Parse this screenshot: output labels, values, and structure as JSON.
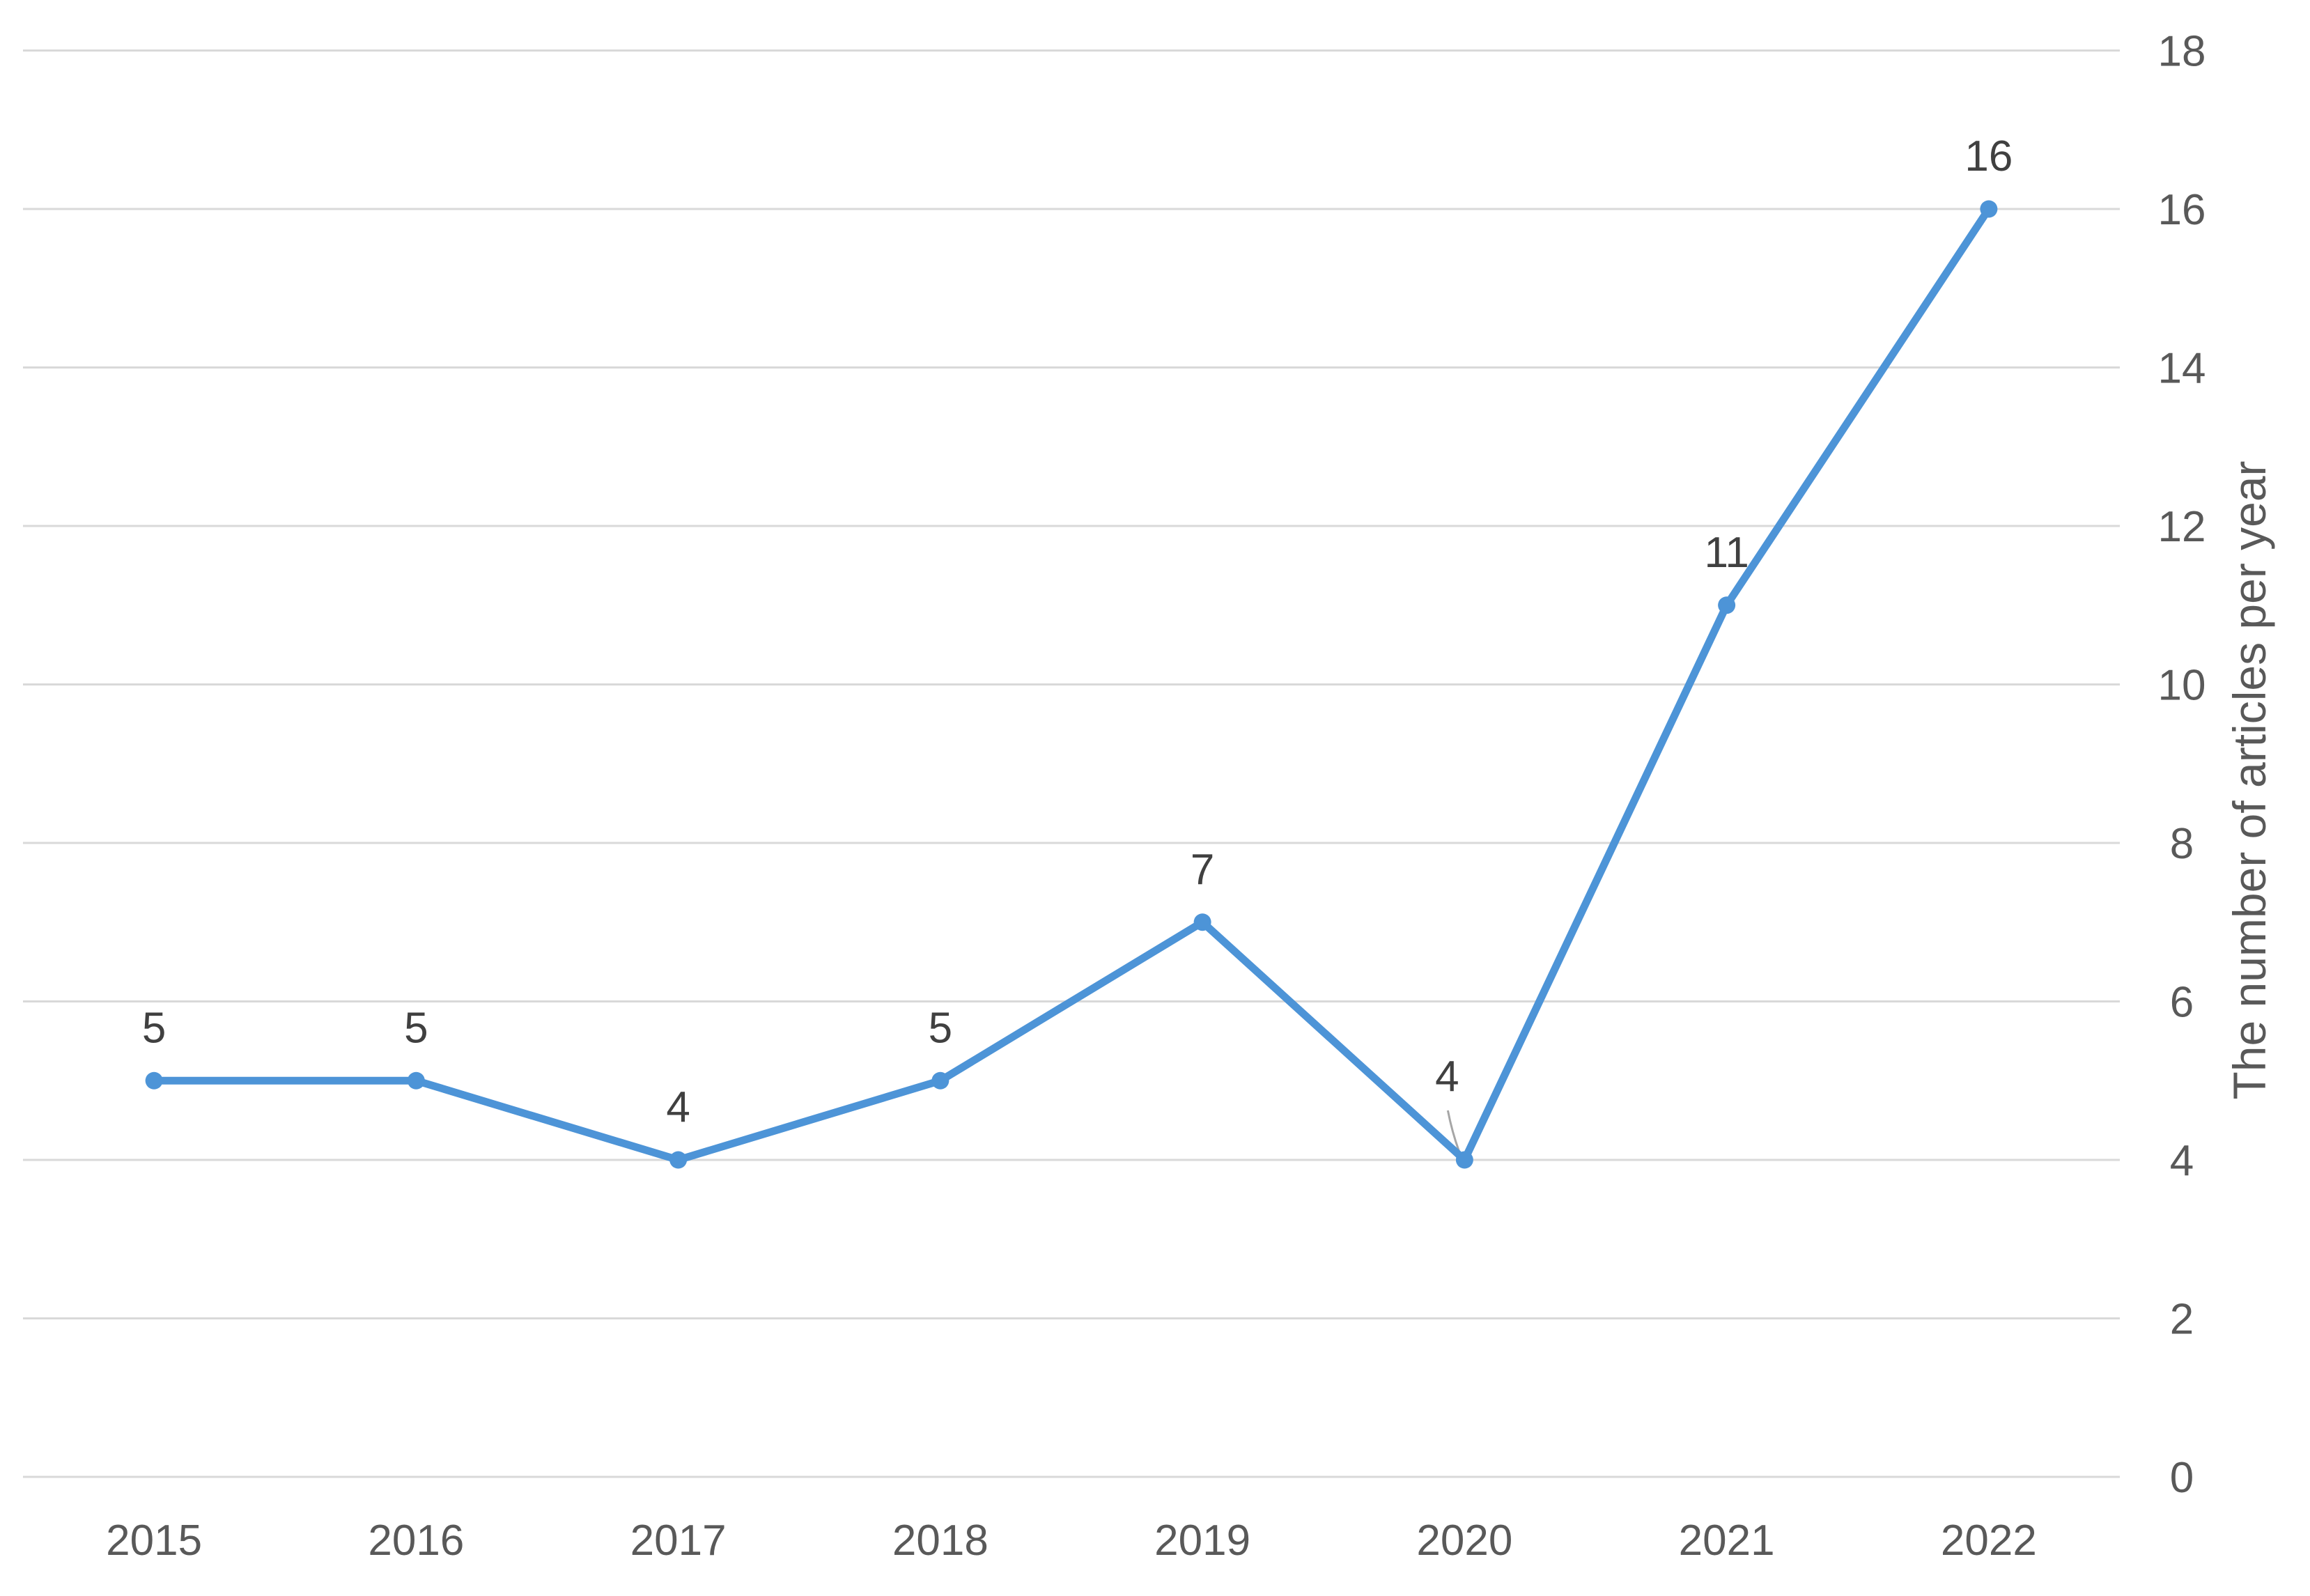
{
  "chart_data": {
    "type": "line",
    "title": "",
    "categories": [
      "2015",
      "2016",
      "2017",
      "2018",
      "2019",
      "2020",
      "2021",
      "2022"
    ],
    "values": [
      5,
      5,
      4,
      5,
      7,
      4,
      11,
      16
    ],
    "data_labels": [
      "5",
      "5",
      "4",
      "5",
      "7",
      "4",
      "11",
      "16"
    ],
    "xlabel": "",
    "ylabel": "The number of articles per year",
    "ylim": [
      0,
      18
    ],
    "yticks": [
      0,
      2,
      4,
      6,
      8,
      10,
      12,
      14,
      16,
      18
    ],
    "y_axis_side": "right",
    "grid": "horizontal",
    "legend": "none",
    "marker": "circle",
    "label_position": "above",
    "moved_label": {
      "category": "2020",
      "position": "above-left",
      "leader_line": true
    },
    "colors": {
      "line": "#4D94D7",
      "marker": "#4D94D7",
      "gridline": "#D9D9D9",
      "axis_text": "#595959",
      "data_label_text": "#404040",
      "leader_line": "#A6A6A6",
      "background": "#FFFFFF"
    }
  }
}
